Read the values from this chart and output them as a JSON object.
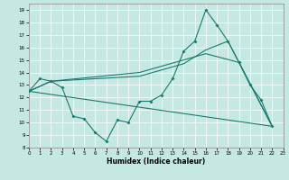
{
  "xlabel": "Humidex (Indice chaleur)",
  "bg_color": "#c5e8e3",
  "grid_color": "#ffffff",
  "line_color": "#1a7a6e",
  "xlim": [
    0,
    23
  ],
  "ylim": [
    8,
    19.5
  ],
  "xtick_labels": [
    "0",
    "1",
    "2",
    "3",
    "4",
    "5",
    "6",
    "7",
    "8",
    "9",
    "10",
    "11",
    "12",
    "13",
    "14",
    "15",
    "16",
    "17",
    "18",
    "19",
    "20",
    "21",
    "22",
    "23"
  ],
  "xticks": [
    0,
    1,
    2,
    3,
    4,
    5,
    6,
    7,
    8,
    9,
    10,
    11,
    12,
    13,
    14,
    15,
    16,
    17,
    18,
    19,
    20,
    21,
    22,
    23
  ],
  "yticks": [
    8,
    9,
    10,
    11,
    12,
    13,
    14,
    15,
    16,
    17,
    18,
    19
  ],
  "line1_x": [
    0,
    1,
    2,
    3,
    4,
    5,
    6,
    7,
    8,
    9,
    10,
    11,
    12,
    13,
    14,
    15,
    16,
    17,
    18,
    19,
    20,
    21,
    22
  ],
  "line1_y": [
    12.5,
    13.5,
    13.3,
    12.8,
    10.5,
    10.3,
    9.2,
    8.5,
    10.2,
    10.0,
    11.7,
    11.7,
    12.2,
    13.5,
    15.7,
    16.5,
    19.0,
    17.8,
    16.5,
    14.8,
    13.0,
    11.8,
    9.7
  ],
  "line2_x": [
    0,
    2,
    10,
    14,
    16,
    18,
    22
  ],
  "line2_y": [
    12.5,
    13.3,
    13.7,
    14.7,
    15.8,
    16.5,
    9.7
  ],
  "line3_x": [
    0,
    2,
    10,
    16,
    19,
    22
  ],
  "line3_y": [
    12.5,
    13.3,
    14.0,
    15.5,
    14.8,
    9.7
  ],
  "line4_x": [
    0,
    22
  ],
  "line4_y": [
    12.5,
    9.7
  ]
}
